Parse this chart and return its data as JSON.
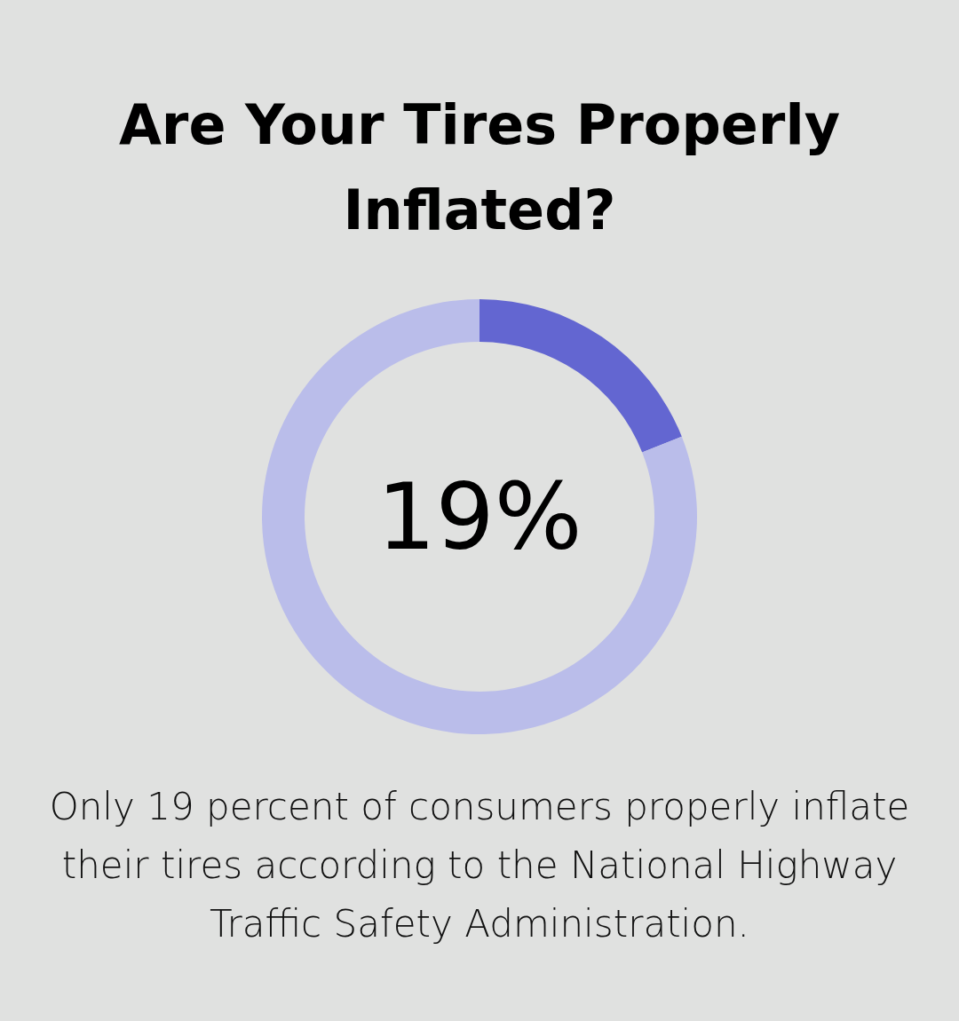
{
  "chart_data": {
    "type": "donut",
    "title": "Are Your Tires Properly Inflated?",
    "categories": [
      null,
      null
    ],
    "values": [
      19,
      81
    ],
    "colors": [
      "#6366d1",
      "#babdea"
    ],
    "annotations": [
      "19%",
      "Only 19 percent of consumers properly inflate their tires according to the National Highway Traffic Safety Administration."
    ]
  }
}
